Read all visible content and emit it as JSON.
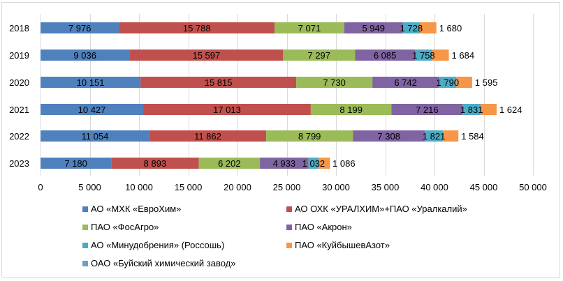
{
  "chart_data": {
    "type": "bar",
    "orientation": "horizontal",
    "stacked": true,
    "title": "",
    "xlabel": "",
    "ylabel": "",
    "xlim": [
      0,
      50000
    ],
    "x_ticks": [
      0,
      5000,
      10000,
      15000,
      20000,
      25000,
      30000,
      35000,
      40000,
      45000,
      50000
    ],
    "x_tick_labels": [
      "0",
      "5 000",
      "10 000",
      "15 000",
      "20 000",
      "25 000",
      "30 000",
      "35 000",
      "40 000",
      "45 000",
      "50 000"
    ],
    "grid": true,
    "legend_position": "bottom",
    "categories": [
      "2018",
      "2019",
      "2020",
      "2021",
      "2022",
      "2023"
    ],
    "series": [
      {
        "name": "АО «МХК «ЕвроХим»",
        "color": "#4f81bd",
        "values": [
          7976,
          9036,
          10151,
          10427,
          11054,
          7180
        ],
        "labels": [
          "7 976",
          "9 036",
          "10 151",
          "10 427",
          "11 054",
          "7 180"
        ]
      },
      {
        "name": "АО ОХК «УРАЛХИМ»+ПАО «Уралкалий»",
        "color": "#c0504d",
        "values": [
          15788,
          15597,
          15815,
          17013,
          11862,
          8893
        ],
        "labels": [
          "15 788",
          "15 597",
          "15 815",
          "17 013",
          "11 862",
          "8 893"
        ]
      },
      {
        "name": "ПАО «ФосАгро»",
        "color": "#9bbb59",
        "values": [
          7071,
          7297,
          7730,
          8199,
          8799,
          6202
        ],
        "labels": [
          "7 071",
          "7 297",
          "7 730",
          "8 199",
          "8 799",
          "6 202"
        ]
      },
      {
        "name": "ПАО «Акрон»",
        "color": "#8064a2",
        "values": [
          5949,
          6085,
          6742,
          7216,
          7308,
          4933
        ],
        "labels": [
          "5 949",
          "6 085",
          "6 742",
          "7 216",
          "7 308",
          "4 933"
        ]
      },
      {
        "name": "АО «Минудобрения» (Россошь)",
        "color": "#4bacc6",
        "values": [
          1728,
          1758,
          1790,
          1831,
          1821,
          1032
        ],
        "labels": [
          "1 728",
          "1 758",
          "1 790",
          "1 831",
          "1 821",
          "1 032"
        ]
      },
      {
        "name": "ПАО «КуйбышевАзот»",
        "color": "#f79646",
        "values": [
          1680,
          1684,
          1595,
          1624,
          1584,
          1086
        ],
        "labels": [
          "1 680",
          "1 684",
          "1 595",
          "1 624",
          "1 584",
          "1 086"
        ]
      },
      {
        "name": "ОАО «Буйский химический завод»",
        "color": "#729aca",
        "values": [
          0,
          0,
          0,
          0,
          0,
          40
        ],
        "labels": [
          "",
          "",
          "",
          "",
          "",
          ""
        ]
      }
    ]
  }
}
